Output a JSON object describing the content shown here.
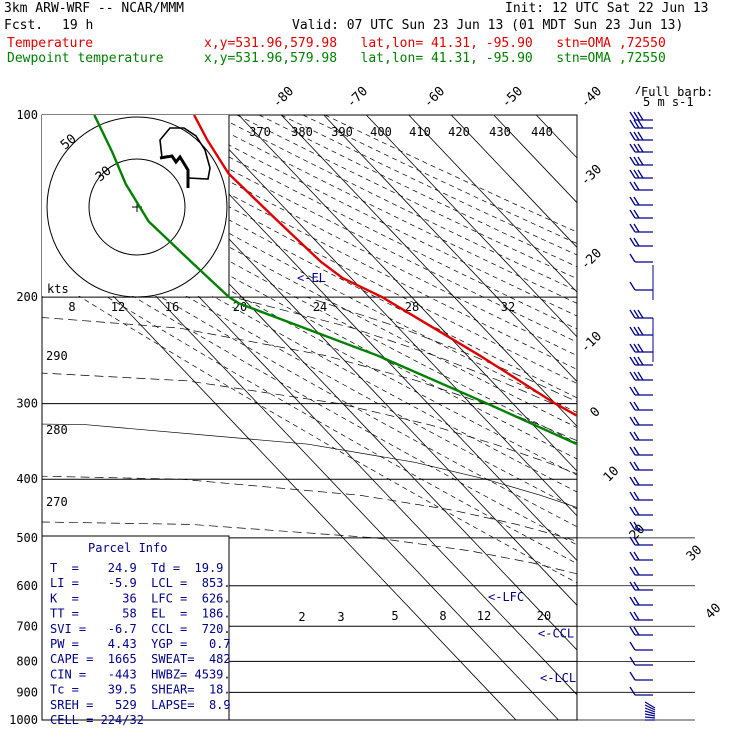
{
  "header": {
    "model": "3km ARW-WRF -- NCAR/MMM",
    "init": "Init: 12 UTC Sat 22 Jun 13",
    "fcst_label": "Fcst.",
    "fcst_value": "19 h",
    "valid": "Valid: 07 UTC Sun 23 Jun 13 (01 MDT Sun 23 Jun 13)",
    "temp_label": "Temperature",
    "temp_info": "x,y=531.96,579.98   lat,lon= 41.31, -95.90   stn=OMA ,72550",
    "dew_label": "Dewpoint temperature",
    "dew_info": "x,y=531.96,579.98   lat,lon= 41.31, -95.90   stn=OMA ,72550"
  },
  "chart_data": {
    "type": "line",
    "chart_kind": "skew-T log-p sounding",
    "y_axis": {
      "label": "pressure (hPa)",
      "scale": "log",
      "ticks": [
        100,
        200,
        300,
        400,
        500,
        600,
        700,
        800,
        900,
        1000
      ]
    },
    "skew_temperature_labels": [
      "-80",
      "-70",
      "-60",
      "-50",
      "-40",
      "-30",
      "-20",
      "-10",
      "0",
      "10",
      "20",
      "30",
      "40"
    ],
    "theta_e_labels": [
      "370",
      "380",
      "390",
      "400",
      "410",
      "420",
      "430",
      "440"
    ],
    "theta_labels_left": [
      "290",
      "280",
      "270"
    ],
    "mixing_ratio_labels": [
      "2",
      "3",
      "5",
      "8",
      "12",
      "20"
    ],
    "series": [
      {
        "name": "Temperature",
        "color": "#e00000",
        "points": [
          [
            100,
            -60.5
          ],
          [
            110,
            -63
          ],
          [
            125,
            -65.5
          ],
          [
            150,
            -64.5
          ],
          [
            175,
            -63.5
          ],
          [
            186,
            -62
          ],
          [
            200,
            -57
          ],
          [
            250,
            -47
          ],
          [
            300,
            -40
          ],
          [
            350,
            -32
          ],
          [
            400,
            -24
          ],
          [
            450,
            -16.5
          ],
          [
            500,
            -10
          ],
          [
            550,
            -3
          ],
          [
            600,
            3
          ],
          [
            650,
            8
          ],
          [
            700,
            11.5
          ],
          [
            750,
            16
          ],
          [
            800,
            21
          ],
          [
            850,
            22.5
          ],
          [
            900,
            24
          ],
          [
            925,
            24.9
          ]
        ]
      },
      {
        "name": "Dewpoint temperature",
        "color": "#008000",
        "points": [
          [
            100,
            -84
          ],
          [
            115,
            -88
          ],
          [
            130,
            -92
          ],
          [
            150,
            -95
          ],
          [
            175,
            -94
          ],
          [
            200,
            -93
          ],
          [
            205,
            -92
          ],
          [
            250,
            -71
          ],
          [
            300,
            -56
          ],
          [
            350,
            -44
          ],
          [
            400,
            -33
          ],
          [
            450,
            -21.5
          ],
          [
            500,
            -13
          ],
          [
            550,
            -7.5
          ],
          [
            600,
            -4
          ],
          [
            650,
            -1
          ],
          [
            700,
            3.5
          ],
          [
            750,
            11
          ],
          [
            800,
            16.5
          ],
          [
            850,
            18
          ],
          [
            900,
            19.5
          ],
          [
            925,
            19.9
          ]
        ]
      }
    ],
    "levels": [
      {
        "name": "EL",
        "label": "<-EL",
        "pressure": 186
      },
      {
        "name": "LFC",
        "label": "<-LFC",
        "pressure": 626
      },
      {
        "name": "CCL",
        "label": "<-CCL",
        "pressure": 720
      },
      {
        "name": "LCL",
        "label": "<-LCL",
        "pressure": 853
      }
    ],
    "wind_barb_legend": {
      "line1": "Full barb:",
      "line2": "5 m s-1"
    },
    "hodograph": {
      "speed_axis_label": "kts",
      "speed_ticks": [
        "8",
        "12",
        "16",
        "20",
        "24",
        "28",
        "32"
      ],
      "ring_labels": [
        "50",
        "30"
      ]
    }
  },
  "parcel_info": {
    "title": "Parcel Info",
    "rows": [
      "T  =    24.9  Td =  19.9",
      "LI =    -5.9  LCL =  853.",
      "K  =      36  LFC =  626.",
      "TT =      58  EL  =  186.",
      "SVI =   -6.7  CCL =  720.",
      "PW =    4.43  YGP =   0.7",
      "CAPE =  1665  SWEAT=  482",
      "CIN =   -443  HWBZ= 4539.",
      "Tc =    39.5  SHEAR=  18.",
      "SREH =   529  LAPSE=  8.9",
      "CELL = 224/32"
    ]
  },
  "colors": {
    "temperature": "#e00000",
    "dewpoint": "#008000",
    "annotation": "#00008b",
    "barbs": "#00008b"
  }
}
